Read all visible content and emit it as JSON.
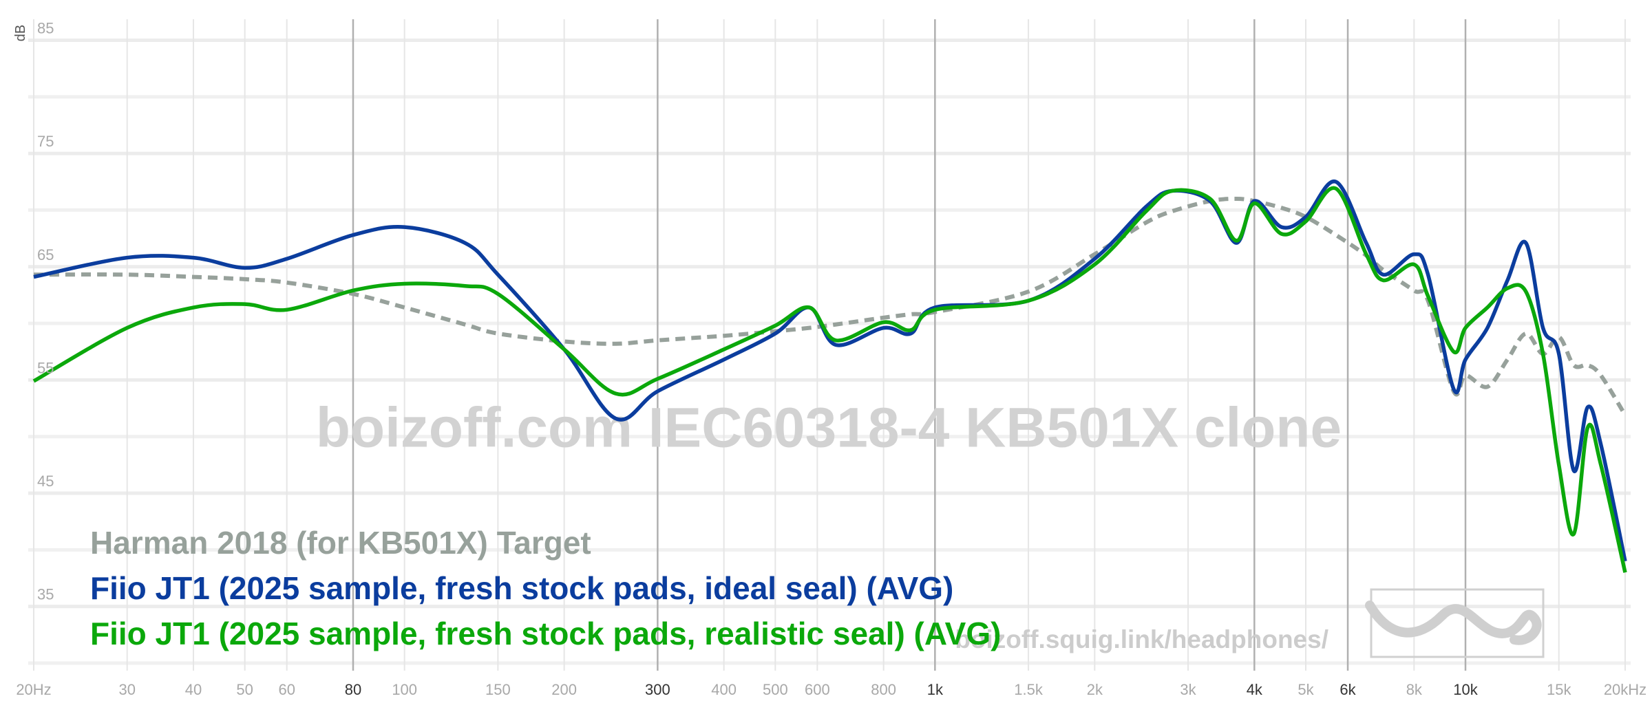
{
  "chart_data": {
    "type": "line",
    "y_label": "dB",
    "watermark": "boizoff.com IEC60318-4 KB501X clone",
    "site_label": "boizoff.squig.link/headphones/",
    "x_scale": "log",
    "xlim": [
      20,
      20000
    ],
    "ylim": [
      30,
      86
    ],
    "xticks": [
      {
        "value": 20,
        "label": "20Hz"
      },
      30,
      40,
      50,
      60,
      80,
      100,
      150,
      200,
      300,
      400,
      500,
      600,
      800,
      {
        "value": 1000,
        "label": "1k"
      },
      {
        "value": 1500,
        "label": "1.5k"
      },
      {
        "value": 2000,
        "label": "2k"
      },
      {
        "value": 3000,
        "label": "3k"
      },
      {
        "value": 4000,
        "label": "4k"
      },
      {
        "value": 5000,
        "label": "5k"
      },
      {
        "value": 6000,
        "label": "6k"
      },
      {
        "value": 8000,
        "label": "8k"
      },
      {
        "value": 10000,
        "label": "10k"
      },
      {
        "value": 15000,
        "label": "15k"
      },
      {
        "value": 20000,
        "label": "20kHz"
      }
    ],
    "xticks_emphasized": [
      80,
      300,
      1000,
      4000,
      6000,
      10000
    ],
    "yticks": [
      35,
      45,
      55,
      65,
      75,
      85
    ],
    "yminor": [
      30,
      40,
      50,
      60,
      70,
      80
    ],
    "grid": true,
    "legend": "bottom-left",
    "x": [
      20,
      30,
      40,
      50,
      60,
      80,
      100,
      130,
      150,
      200,
      250,
      300,
      400,
      500,
      580,
      650,
      800,
      900,
      1000,
      1500,
      2000,
      2500,
      2800,
      3300,
      3700,
      4000,
      4500,
      5000,
      5700,
      6500,
      7000,
      8000,
      8500,
      9500,
      10000,
      11000,
      12000,
      13000,
      14000,
      15000,
      16000,
      17000,
      18000,
      20000
    ],
    "series": [
      {
        "name": "Harman 2018 (for KB501X) Target",
        "color": "#97a19b",
        "dashed": true,
        "values": [
          64.3,
          64.3,
          64.1,
          63.9,
          63.6,
          62.6,
          61.4,
          59.9,
          59.1,
          58.4,
          58.2,
          58.5,
          58.9,
          59.3,
          59.6,
          59.9,
          60.5,
          60.8,
          61,
          62.8,
          66.1,
          68.9,
          69.9,
          70.8,
          71,
          70.8,
          70.2,
          69.4,
          67.8,
          66,
          64.7,
          62.9,
          62,
          54,
          55.4,
          54.4,
          56.8,
          59.1,
          57.3,
          58.8,
          56.3,
          56.3,
          55.4,
          51.9
        ]
      },
      {
        "name": "Fiio JT1 (2025 sample, fresh stock pads, ideal seal) (AVG)",
        "color": "#0b3d9e",
        "dashed": false,
        "values": [
          64.1,
          65.8,
          65.8,
          64.9,
          65.7,
          67.8,
          68.5,
          67.1,
          64.3,
          57.7,
          51.6,
          54,
          56.8,
          59.1,
          61.4,
          58.1,
          59.6,
          59.1,
          61.4,
          62,
          65.7,
          70.3,
          71.7,
          70.8,
          67.1,
          70.8,
          68.5,
          69.4,
          72.5,
          67.1,
          64.3,
          66.1,
          64.3,
          54.2,
          56.8,
          59.6,
          63.8,
          67.1,
          59.6,
          57.3,
          47,
          52.6,
          49.3,
          39
        ]
      },
      {
        "name": "Fiio JT1 (2025 sample, fresh stock pads, realistic seal) (AVG)",
        "color": "#0ba80b",
        "dashed": false,
        "values": [
          54.9,
          59.6,
          61.4,
          61.7,
          61.2,
          62.9,
          63.5,
          63.3,
          62.6,
          57.7,
          53.8,
          55.1,
          57.7,
          59.8,
          61.4,
          58.5,
          60.1,
          59.4,
          61.2,
          62,
          65.2,
          69.9,
          71.7,
          71,
          67.3,
          70.6,
          67.9,
          69,
          71.9,
          66.1,
          63.8,
          65.2,
          62.4,
          57.5,
          59.6,
          61.4,
          63.1,
          62.8,
          57.3,
          47.5,
          41.4,
          50.8,
          47.5,
          38
        ]
      }
    ]
  }
}
